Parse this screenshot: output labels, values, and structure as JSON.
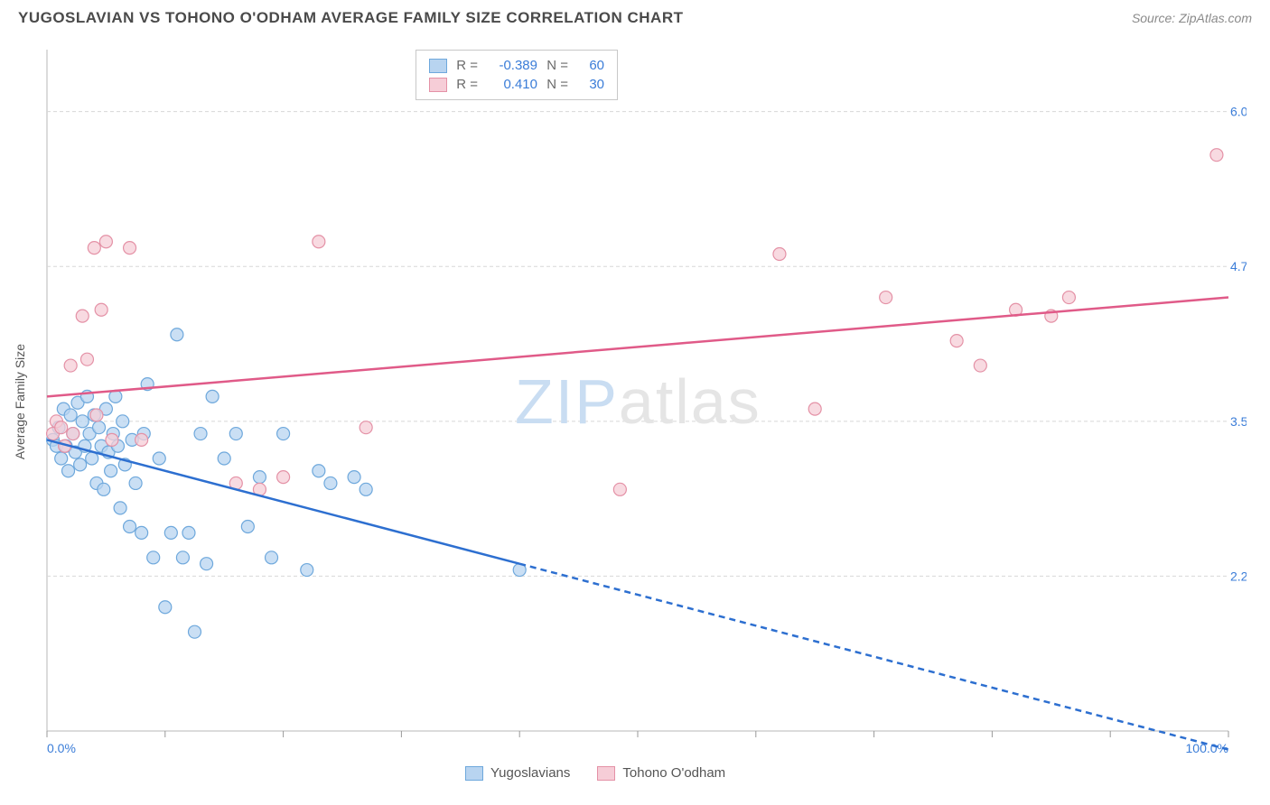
{
  "title": "YUGOSLAVIAN VS TOHONO O'ODHAM AVERAGE FAMILY SIZE CORRELATION CHART",
  "source": "Source: ZipAtlas.com",
  "watermark": {
    "part1": "ZIP",
    "part2": "atlas"
  },
  "y_axis_label": "Average Family Size",
  "chart": {
    "type": "scatter",
    "xlim": [
      0,
      100
    ],
    "ylim": [
      1.0,
      6.5
    ],
    "x_ticks": [
      0,
      10,
      20,
      30,
      40,
      50,
      60,
      70,
      80,
      90,
      100
    ],
    "x_tick_labels": {
      "0": "0.0%",
      "100": "100.0%"
    },
    "y_gridlines": [
      2.25,
      3.5,
      4.75,
      6.0
    ],
    "y_tick_labels": [
      "2.25",
      "3.50",
      "4.75",
      "6.00"
    ],
    "plot_border_color": "#b7b7b7",
    "grid_color": "#d8d8d8",
    "grid_dash": "4,3",
    "tick_color": "#999999",
    "axis_label_color": "#3b7dd8",
    "background_color": "#ffffff",
    "marker_radius": 7,
    "marker_stroke_width": 1.2,
    "series": [
      {
        "name": "Yugoslavians",
        "fill": "#b8d4f0",
        "stroke": "#6ea8dc",
        "fill_opacity": 0.75,
        "stats": {
          "R": "-0.389",
          "N": "60"
        },
        "trend": {
          "color": "#2d6fd0",
          "width": 2.5,
          "solid_end_x": 40,
          "x1": 0,
          "y1": 3.35,
          "x2": 100,
          "y2": 0.85,
          "dash": "7,5"
        },
        "points": [
          [
            0.5,
            3.35
          ],
          [
            0.8,
            3.3
          ],
          [
            1.0,
            3.45
          ],
          [
            1.2,
            3.2
          ],
          [
            1.4,
            3.6
          ],
          [
            1.6,
            3.3
          ],
          [
            1.8,
            3.1
          ],
          [
            2.0,
            3.55
          ],
          [
            2.2,
            3.4
          ],
          [
            2.4,
            3.25
          ],
          [
            2.6,
            3.65
          ],
          [
            2.8,
            3.15
          ],
          [
            3.0,
            3.5
          ],
          [
            3.2,
            3.3
          ],
          [
            3.4,
            3.7
          ],
          [
            3.6,
            3.4
          ],
          [
            3.8,
            3.2
          ],
          [
            4.0,
            3.55
          ],
          [
            4.2,
            3.0
          ],
          [
            4.4,
            3.45
          ],
          [
            4.6,
            3.3
          ],
          [
            4.8,
            2.95
          ],
          [
            5.0,
            3.6
          ],
          [
            5.2,
            3.25
          ],
          [
            5.4,
            3.1
          ],
          [
            5.6,
            3.4
          ],
          [
            5.8,
            3.7
          ],
          [
            6.0,
            3.3
          ],
          [
            6.2,
            2.8
          ],
          [
            6.4,
            3.5
          ],
          [
            6.6,
            3.15
          ],
          [
            7.0,
            2.65
          ],
          [
            7.2,
            3.35
          ],
          [
            7.5,
            3.0
          ],
          [
            8.0,
            2.6
          ],
          [
            8.2,
            3.4
          ],
          [
            8.5,
            3.8
          ],
          [
            9.0,
            2.4
          ],
          [
            9.5,
            3.2
          ],
          [
            10.0,
            2.0
          ],
          [
            10.5,
            2.6
          ],
          [
            11.0,
            4.2
          ],
          [
            11.5,
            2.4
          ],
          [
            12.0,
            2.6
          ],
          [
            12.5,
            1.8
          ],
          [
            13.0,
            3.4
          ],
          [
            13.5,
            2.35
          ],
          [
            14.0,
            3.7
          ],
          [
            15.0,
            3.2
          ],
          [
            16.0,
            3.4
          ],
          [
            17.0,
            2.65
          ],
          [
            18.0,
            3.05
          ],
          [
            19.0,
            2.4
          ],
          [
            20.0,
            3.4
          ],
          [
            22.0,
            2.3
          ],
          [
            23.0,
            3.1
          ],
          [
            24.0,
            3.0
          ],
          [
            26.0,
            3.05
          ],
          [
            27.0,
            2.95
          ],
          [
            40.0,
            2.3
          ]
        ]
      },
      {
        "name": "Tohono O'odham",
        "fill": "#f6cdd7",
        "stroke": "#e491a6",
        "fill_opacity": 0.75,
        "stats": {
          "R": "0.410",
          "N": "30"
        },
        "trend": {
          "color": "#e05a88",
          "width": 2.5,
          "solid_end_x": 100,
          "x1": 0,
          "y1": 3.7,
          "x2": 100,
          "y2": 4.5,
          "dash": "none"
        },
        "points": [
          [
            0.5,
            3.4
          ],
          [
            0.8,
            3.5
          ],
          [
            1.2,
            3.45
          ],
          [
            1.5,
            3.3
          ],
          [
            2.0,
            3.95
          ],
          [
            2.2,
            3.4
          ],
          [
            3.0,
            4.35
          ],
          [
            3.4,
            4.0
          ],
          [
            4.0,
            4.9
          ],
          [
            4.2,
            3.55
          ],
          [
            4.6,
            4.4
          ],
          [
            5.0,
            4.95
          ],
          [
            5.5,
            3.35
          ],
          [
            7.0,
            4.9
          ],
          [
            8.0,
            3.35
          ],
          [
            16.0,
            3.0
          ],
          [
            18.0,
            2.95
          ],
          [
            20.0,
            3.05
          ],
          [
            23.0,
            4.95
          ],
          [
            27.0,
            3.45
          ],
          [
            48.5,
            2.95
          ],
          [
            62.0,
            4.85
          ],
          [
            65.0,
            3.6
          ],
          [
            71.0,
            4.5
          ],
          [
            77.0,
            4.15
          ],
          [
            79.0,
            3.95
          ],
          [
            82.0,
            4.4
          ],
          [
            85.0,
            4.35
          ],
          [
            86.5,
            4.5
          ],
          [
            99.0,
            5.65
          ]
        ]
      }
    ]
  },
  "legend": {
    "stats_labels": {
      "R": "R =",
      "N": "N ="
    },
    "bottom_items": [
      "Yugoslavians",
      "Tohono O'odham"
    ]
  }
}
